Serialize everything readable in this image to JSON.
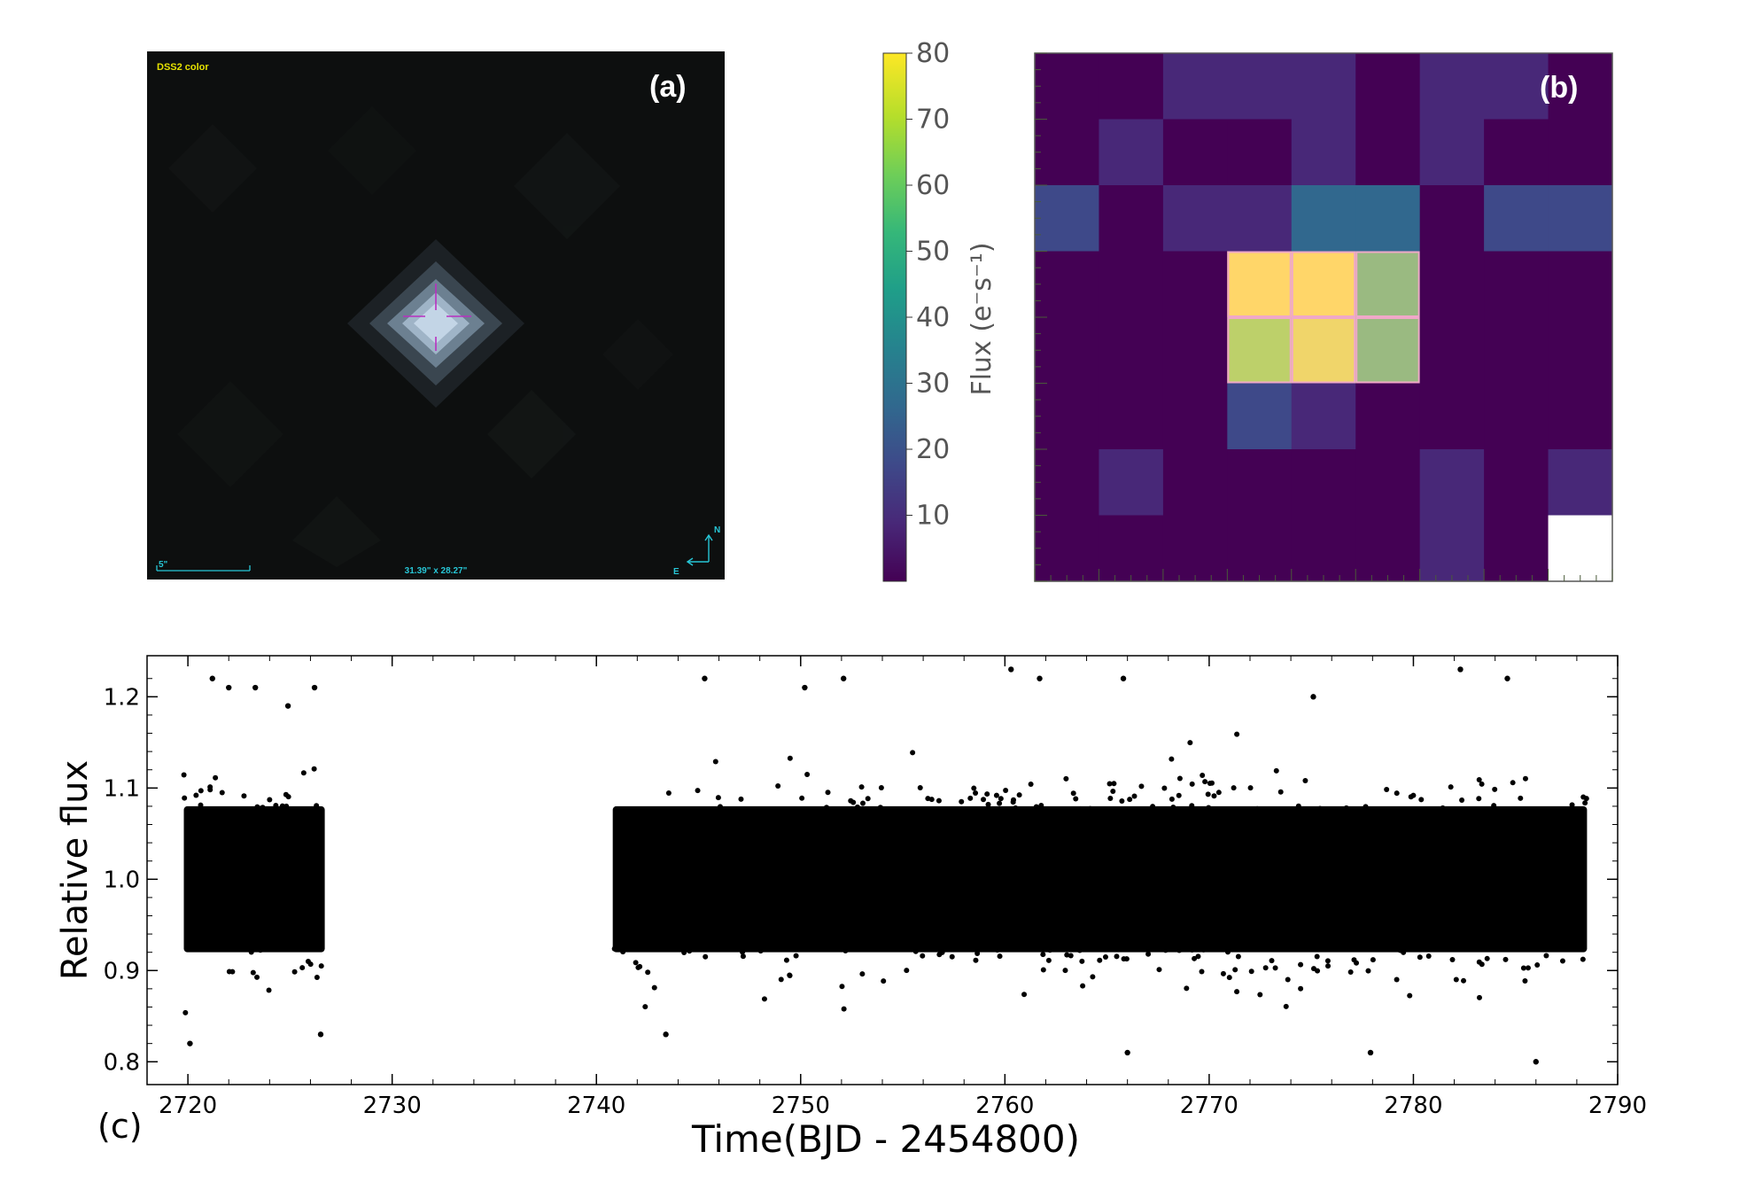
{
  "panel_a": {
    "label": "(a)",
    "survey": "DSS2 color",
    "scale_label": "5\"",
    "fov_label": "31.39\" x 28.27\"",
    "north": "N",
    "east": "E",
    "background_color": "#0d0f0f",
    "star_color": "#b9cde0",
    "marker_color": "#c030c0",
    "overlay_text_color": "#e6e200",
    "overlay_cyan": "#27c6d6"
  },
  "panel_b": {
    "label": "(b)",
    "colorbar_label": "Flux (e⁻s⁻¹)",
    "colorbar_ticks": [
      "10",
      "20",
      "30",
      "40",
      "50",
      "60",
      "70",
      "80"
    ],
    "colormap": [
      "#440154",
      "#482878",
      "#3e4989",
      "#31688e",
      "#26828e",
      "#1f9e89",
      "#35b779",
      "#6ece58",
      "#b5de2b",
      "#fde725"
    ]
  },
  "chart_data": [
    {
      "type": "heatmap",
      "panel": "(b)",
      "colorbar_label": "Flux (e⁻s⁻¹)",
      "colorbar_range": [
        0,
        80
      ],
      "colorbar_ticks": [
        10,
        20,
        30,
        40,
        50,
        60,
        70,
        80
      ],
      "rows": 8,
      "cols": 9,
      "values": [
        [
          3,
          1,
          8,
          10,
          6,
          1,
          9,
          12,
          1
        ],
        [
          1,
          12,
          1,
          4,
          10,
          1,
          10,
          1,
          1
        ],
        [
          18,
          4,
          12,
          12,
          25,
          25,
          1,
          22,
          22
        ],
        [
          3,
          1,
          1,
          78,
          76,
          46,
          1,
          1,
          1
        ],
        [
          1,
          1,
          1,
          60,
          72,
          48,
          1,
          1,
          4
        ],
        [
          4,
          1,
          1,
          20,
          10,
          4,
          1,
          1,
          1
        ],
        [
          1,
          12,
          1,
          4,
          4,
          1,
          8,
          3,
          10
        ],
        [
          3,
          3,
          3,
          3,
          3,
          3,
          6,
          3,
          null
        ]
      ],
      "aperture_pixels": [
        [
          3,
          3
        ],
        [
          3,
          4
        ],
        [
          3,
          5
        ],
        [
          4,
          3
        ],
        [
          4,
          4
        ],
        [
          4,
          5
        ]
      ]
    },
    {
      "type": "scatter",
      "panel": "(c)",
      "xlabel": "Time(BJD - 2454800)",
      "ylabel": "Relative flux",
      "xlim": [
        2718,
        2790
      ],
      "ylim": [
        0.775,
        1.245
      ],
      "xticks": [
        2720,
        2730,
        2740,
        2750,
        2760,
        2770,
        2780,
        2790
      ],
      "yticks": [
        0.8,
        0.9,
        1.0,
        1.1,
        1.2
      ],
      "grid": false,
      "series": [
        {
          "segments": [
            [
              2719.8,
              2726.7
            ],
            [
              2740.8,
              2788.5
            ]
          ],
          "center": 1.0,
          "dense_band": [
            0.965,
            1.035
          ],
          "core_band": [
            0.92,
            1.08
          ],
          "outlier_range": [
            0.8,
            1.23
          ],
          "x": [
            2720.1,
            2721.2,
            2722.0,
            2723.3,
            2724.9,
            2726.2,
            2726.5,
            2745.3,
            2750.2,
            2752.1,
            2760.3,
            2761.7,
            2765.8,
            2775.1,
            2782.3,
            2784.6,
            2786.0,
            2743.4,
            2766.0,
            2777.9
          ],
          "y": [
            0.82,
            1.22,
            1.21,
            1.21,
            1.19,
            1.21,
            0.83,
            1.22,
            1.21,
            1.22,
            1.23,
            1.22,
            1.22,
            1.2,
            1.23,
            1.22,
            0.8,
            0.83,
            0.81,
            0.81
          ]
        }
      ]
    }
  ],
  "panel_c_label": "(c)"
}
